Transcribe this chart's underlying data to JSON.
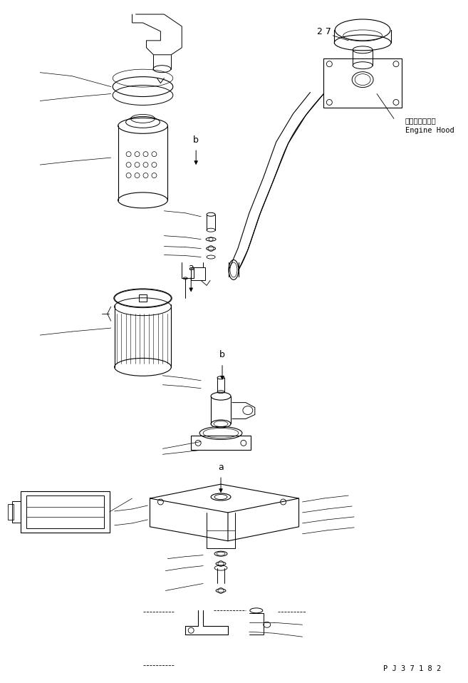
{
  "background_color": "#ffffff",
  "line_color": "#000000",
  "part_number": "P J 3 7 1 8 2",
  "engine_hood_jp": "エンジンフード",
  "engine_hood_en": "Engine Hood",
  "label_27": "2 7",
  "label_a": "a",
  "label_b": "b",
  "fig_width": 6.57,
  "fig_height": 9.58,
  "dpi": 100
}
